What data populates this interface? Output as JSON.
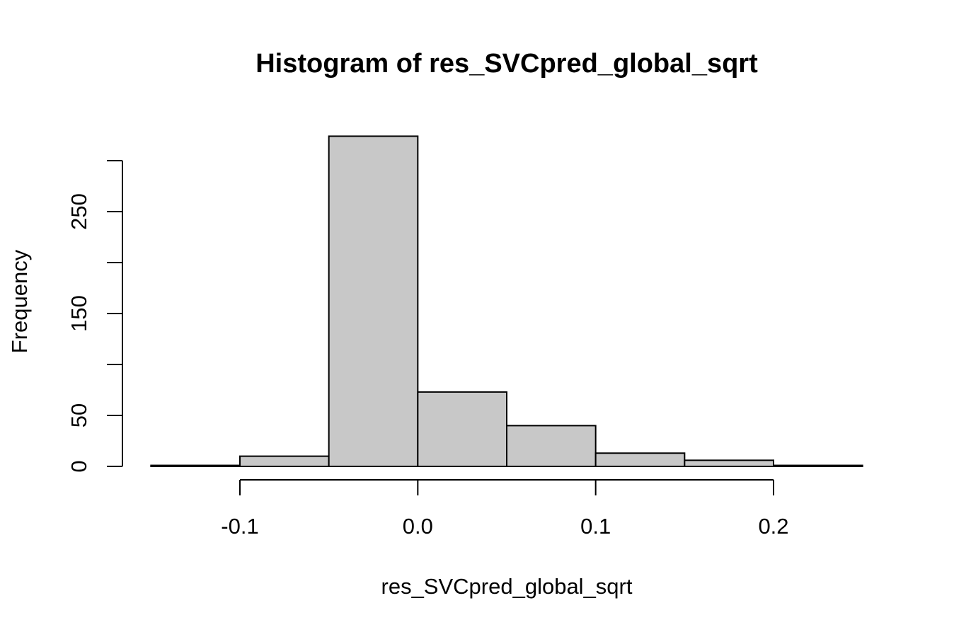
{
  "chart_data": {
    "type": "bar",
    "title": "Histogram of res_SVCpred_global_sqrt",
    "xlabel": "res_SVCpred_global_sqrt",
    "ylabel": "Frequency",
    "bins": [
      {
        "x0": -0.15,
        "x1": -0.1,
        "count": 1
      },
      {
        "x0": -0.1,
        "x1": -0.05,
        "count": 10
      },
      {
        "x0": -0.05,
        "x1": 0.0,
        "count": 324
      },
      {
        "x0": 0.0,
        "x1": 0.05,
        "count": 73
      },
      {
        "x0": 0.05,
        "x1": 0.1,
        "count": 40
      },
      {
        "x0": 0.1,
        "x1": 0.15,
        "count": 13
      },
      {
        "x0": 0.15,
        "x1": 0.2,
        "count": 6
      },
      {
        "x0": 0.2,
        "x1": 0.25,
        "count": 1
      }
    ],
    "xlim": [
      -0.15,
      0.25
    ],
    "ylim": [
      0,
      324
    ],
    "x_ticks": [
      -0.1,
      0.0,
      0.1,
      0.2
    ],
    "x_tick_labels": [
      "-0.1",
      "0.0",
      "0.1",
      "0.2"
    ],
    "y_ticks": [
      0,
      50,
      100,
      150,
      200,
      250,
      300
    ],
    "y_tick_labels": [
      "0",
      "50",
      "",
      "150",
      "",
      "250",
      ""
    ],
    "bar_color": "#c8c8c8",
    "grid": false,
    "legend": "none"
  }
}
